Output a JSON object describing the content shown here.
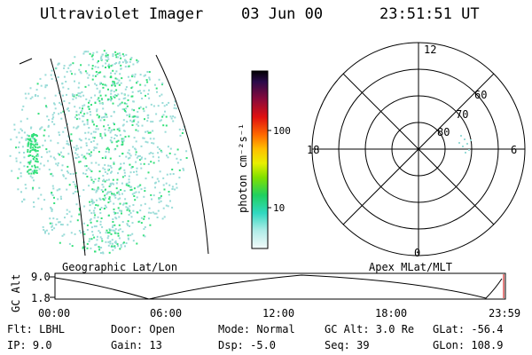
{
  "header": {
    "instrument": "Ultraviolet Imager",
    "date": "03 Jun 00",
    "time": "23:51:51 UT"
  },
  "colorbar": {
    "unit_label": "photon cm⁻²s⁻¹",
    "tick_labels": [
      "100",
      "10"
    ]
  },
  "polar_plot": {
    "mlt_labels": {
      "top": "12",
      "left": "18",
      "right": "6",
      "bottom": "0"
    },
    "lat_labels": [
      "60",
      "70",
      "80"
    ]
  },
  "map_labels": {
    "left": "Geographic Lat/Lon",
    "right": "Apex MLat/MLT"
  },
  "altitude_plot": {
    "ylabel": "GC Alt",
    "ymax_label": "9.0",
    "ymin_label": "1.8",
    "x_ticks": [
      "00:00",
      "06:00",
      "12:00",
      "18:00",
      "23:59"
    ]
  },
  "footer": {
    "row1": {
      "flt": "Flt: LBHL",
      "door": "Door: Open",
      "mode": "Mode: Normal",
      "gc_alt": "GC Alt: 3.0 Re",
      "glat": "GLat: -56.4"
    },
    "row2": {
      "ip": "IP:  9.0",
      "gain": "Gain: 13",
      "dsp": "Dsp:   -5.0",
      "seq": "Seq: 39",
      "glon": "GLon: 108.9"
    }
  },
  "colors": {
    "aurora_cyan": "#9adcd8",
    "aurora_green": "#33e07a"
  }
}
